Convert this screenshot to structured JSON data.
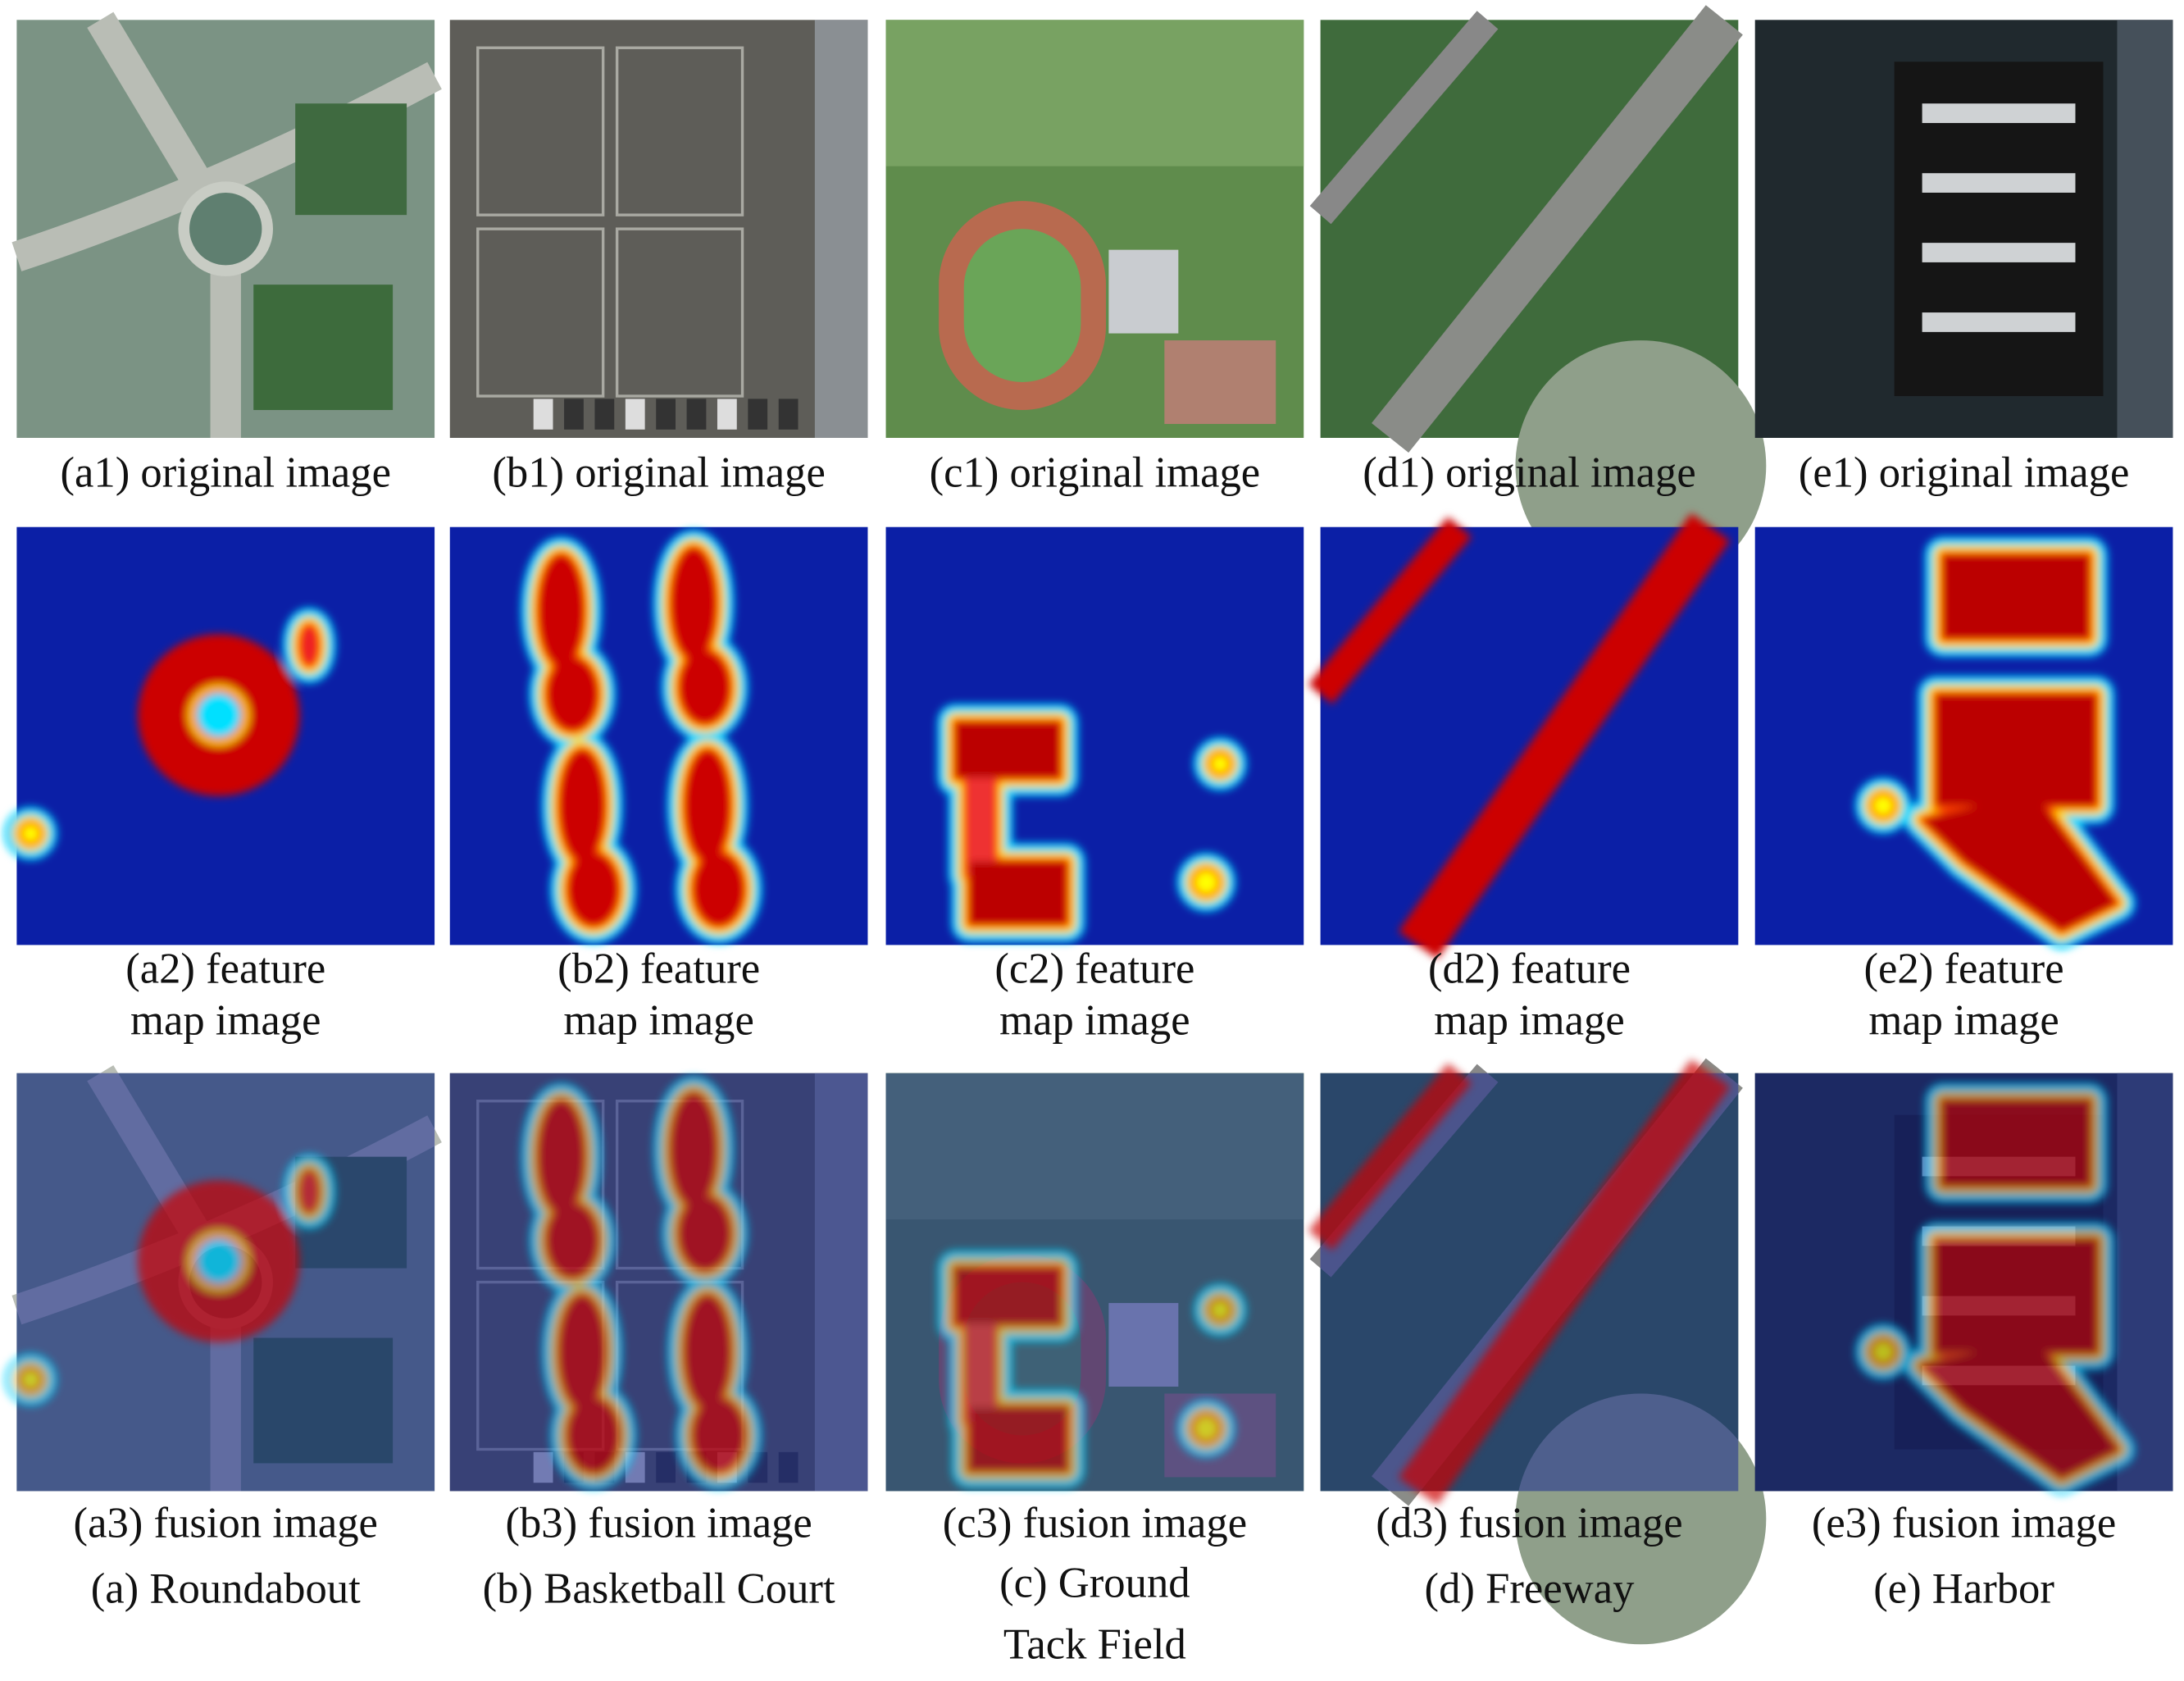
{
  "columns": [
    {
      "original": "(a1) original image",
      "feature": [
        "(a2) feature",
        "map image"
      ],
      "fusion": "(a3) fusion image",
      "category": [
        "(a) Roundabout"
      ]
    },
    {
      "original": "(b1) original image",
      "feature": [
        "(b2) feature",
        "map image"
      ],
      "fusion": "(b3) fusion image",
      "category": [
        "(b) Basketball Court"
      ]
    },
    {
      "original": "(c1) original image",
      "feature": [
        "(c2) feature",
        "map image"
      ],
      "fusion": "(c3) fusion image",
      "category": [
        "(c) Ground",
        "Tack Field"
      ]
    },
    {
      "original": "(d1) original image",
      "feature": [
        "(d2) feature",
        "map image"
      ],
      "fusion": "(d3) fusion image",
      "category": [
        "(d) Freeway"
      ]
    },
    {
      "original": "(e1) original image",
      "feature": [
        "(e2) feature",
        "map image"
      ],
      "fusion": "(e3) fusion image",
      "category": [
        "(e) Harbor"
      ]
    }
  ]
}
